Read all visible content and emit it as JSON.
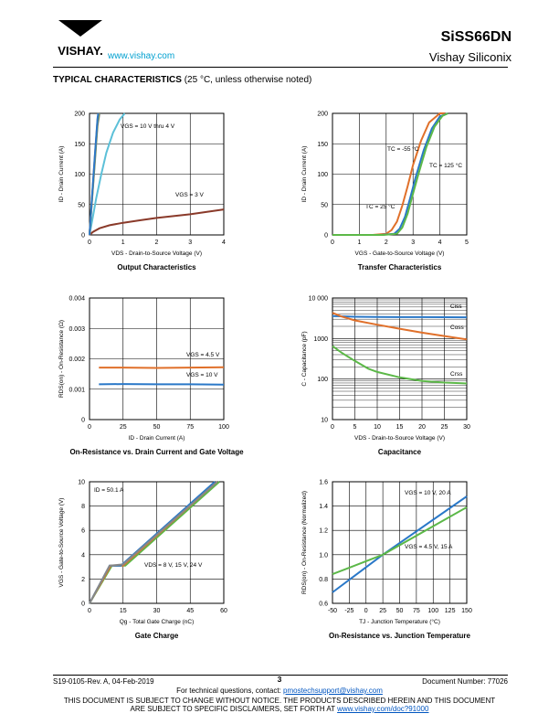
{
  "header": {
    "brand": "VISHAY.",
    "url": "www.vishay.com",
    "part_number": "SiSS66DN",
    "company": "Vishay Siliconix"
  },
  "section": {
    "title": "TYPICAL CHARACTERISTICS",
    "note": "(25 °C, unless otherwise noted)"
  },
  "colors": {
    "blue": "#2a78c8",
    "green": "#5cb848",
    "orange": "#e0702a",
    "teal": "#5cc0d8",
    "brown": "#8a3a2a",
    "gray": "#888888"
  },
  "chart_data": [
    {
      "type": "line",
      "caption": "Output Characteristics",
      "xlabel": "VDS - Drain-to-Source Voltage (V)",
      "ylabel": "ID - Drain Current (A)",
      "xlim": [
        0,
        4
      ],
      "ylim": [
        0,
        200
      ],
      "xticks": [
        "0",
        "1",
        "2",
        "3",
        "4"
      ],
      "yticks": [
        "0",
        "50",
        "100",
        "150",
        "200"
      ],
      "annotations": [
        {
          "text": "VGS = 10 V thru 4 V"
        },
        {
          "text": "VGS = 3 V"
        }
      ],
      "series": [
        {
          "color": "#8a3a2a",
          "x": [
            0,
            0.1,
            0.3,
            0.6,
            1,
            1.5,
            2,
            2.5,
            3,
            3.5,
            4
          ],
          "y": [
            0,
            5,
            11,
            16,
            20,
            24,
            28,
            31,
            34,
            38,
            42
          ]
        },
        {
          "color": "#5cc0d8",
          "x": [
            0,
            0.1,
            0.2,
            0.35,
            0.5,
            0.7,
            0.9,
            1.05
          ],
          "y": [
            0,
            30,
            60,
            100,
            135,
            168,
            190,
            200
          ]
        },
        {
          "color": "#888888",
          "x": [
            0,
            0.08,
            0.16,
            0.24,
            0.3
          ],
          "y": [
            0,
            60,
            120,
            180,
            200
          ]
        },
        {
          "color": "#5cb848",
          "x": [
            0,
            0.08,
            0.16,
            0.24,
            0.28
          ],
          "y": [
            0,
            62,
            125,
            185,
            200
          ]
        },
        {
          "color": "#e0702a",
          "x": [
            0,
            0.08,
            0.16,
            0.24,
            0.27
          ],
          "y": [
            0,
            65,
            130,
            190,
            200
          ]
        },
        {
          "color": "#2a78c8",
          "x": [
            0,
            0.08,
            0.16,
            0.24,
            0.26
          ],
          "y": [
            0,
            66,
            132,
            192,
            200
          ]
        }
      ]
    },
    {
      "type": "line",
      "caption": "Transfer Characteristics",
      "xlabel": "VGS - Gate-to-Source Voltage (V)",
      "ylabel": "ID - Drain Current (A)",
      "xlim": [
        0,
        5
      ],
      "ylim": [
        0,
        200
      ],
      "xticks": [
        "0",
        "1",
        "2",
        "3",
        "4",
        "5"
      ],
      "yticks": [
        "0",
        "50",
        "100",
        "150",
        "200"
      ],
      "annotations": [
        {
          "text": "TC = -55 °C"
        },
        {
          "text": "TC = 125 °C"
        },
        {
          "text": "TC = 25 °C"
        }
      ],
      "series": [
        {
          "name": "TC = -55 °C",
          "color": "#e0702a",
          "x": [
            0,
            1.5,
            2.0,
            2.2,
            2.4,
            2.6,
            2.8,
            3.0,
            3.3,
            3.6,
            4.0,
            4.2
          ],
          "y": [
            0,
            0,
            2,
            8,
            22,
            48,
            80,
            115,
            155,
            185,
            200,
            200
          ]
        },
        {
          "name": "TC = 125 °C",
          "color": "#2a78c8",
          "x": [
            0,
            1.8,
            2.3,
            2.5,
            2.7,
            2.9,
            3.1,
            3.4,
            3.7,
            4.0,
            4.3
          ],
          "y": [
            0,
            0,
            2,
            10,
            30,
            62,
            95,
            140,
            175,
            195,
            200
          ]
        },
        {
          "name": "TC = 25 °C",
          "color": "#5cb848",
          "x": [
            0,
            1.9,
            2.4,
            2.6,
            2.8,
            3.0,
            3.2,
            3.5,
            3.8,
            4.1,
            4.3
          ],
          "y": [
            0,
            0,
            2,
            12,
            35,
            68,
            100,
            145,
            178,
            196,
            200
          ]
        }
      ]
    },
    {
      "type": "line",
      "caption": "On-Resistance vs. Drain Current and Gate Voltage",
      "xlabel": "ID - Drain Current (A)",
      "ylabel": "RDS(on) - On-Resistance (Ω)",
      "xlim": [
        0,
        100
      ],
      "ylim": [
        0,
        0.004
      ],
      "xticks": [
        "0",
        "25",
        "50",
        "75",
        "100"
      ],
      "yticks": [
        "0",
        "0.001",
        "0.002",
        "0.003",
        "0.004"
      ],
      "annotations": [
        {
          "text": "VGS = 4.5 V"
        },
        {
          "text": "VGS = 10 V"
        }
      ],
      "series": [
        {
          "name": "VGS = 4.5 V",
          "color": "#e0702a",
          "x": [
            7,
            25,
            50,
            75,
            100
          ],
          "y": [
            0.00171,
            0.00171,
            0.0017,
            0.00171,
            0.00172
          ]
        },
        {
          "name": "VGS = 10 V",
          "color": "#2a78c8",
          "x": [
            7,
            25,
            50,
            75,
            100
          ],
          "y": [
            0.00116,
            0.00117,
            0.00116,
            0.00116,
            0.00115
          ]
        }
      ]
    },
    {
      "type": "line",
      "caption": "Capacitance",
      "xlabel": "VDS - Drain-to-Source Voltage (V)",
      "ylabel": "C - Capacitance (pF)",
      "xlim": [
        0,
        30
      ],
      "ylim": [
        10,
        10000
      ],
      "yscale": "log",
      "xticks": [
        "0",
        "5",
        "10",
        "15",
        "20",
        "25",
        "30"
      ],
      "yticks": [
        "10",
        "100",
        "1000",
        "10 000"
      ],
      "annotations": [
        {
          "text": "Ciss"
        },
        {
          "text": "Coss"
        },
        {
          "text": "Crss"
        }
      ],
      "series": [
        {
          "name": "Ciss",
          "color": "#2a78c8",
          "x": [
            0,
            5,
            10,
            15,
            20,
            25,
            30
          ],
          "y": [
            3600,
            3450,
            3400,
            3380,
            3370,
            3360,
            3350
          ]
        },
        {
          "name": "Coss",
          "color": "#e0702a",
          "x": [
            0,
            2,
            5,
            10,
            15,
            20,
            25,
            30
          ],
          "y": [
            4300,
            3500,
            2800,
            2200,
            1750,
            1400,
            1150,
            950
          ]
        },
        {
          "name": "Crss",
          "color": "#5cb848",
          "x": [
            0,
            2,
            5,
            8,
            10,
            15,
            20,
            25,
            30
          ],
          "y": [
            650,
            450,
            280,
            180,
            150,
            110,
            90,
            82,
            78
          ]
        }
      ]
    },
    {
      "type": "line",
      "caption": "Gate Charge",
      "xlabel": "Qg - Total Gate Charge (nC)",
      "ylabel": "VGS - Gate-to-Source Voltage (V)",
      "xlim": [
        0,
        60
      ],
      "ylim": [
        0,
        10
      ],
      "xticks": [
        "0",
        "15",
        "30",
        "45",
        "60"
      ],
      "yticks": [
        "0",
        "2",
        "4",
        "6",
        "8",
        "10"
      ],
      "annotations": [
        {
          "text": "ID = 50.1 A"
        },
        {
          "text": "VDS = 8 V, 15 V, 24 V"
        }
      ],
      "series": [
        {
          "color": "#5cb848",
          "x": [
            0,
            10,
            16,
            58
          ],
          "y": [
            0,
            3.1,
            3.1,
            10
          ]
        },
        {
          "color": "#e0702a",
          "x": [
            0,
            9.5,
            15,
            57
          ],
          "y": [
            0,
            3.1,
            3.1,
            10
          ]
        },
        {
          "color": "#2a78c8",
          "x": [
            0,
            9,
            14,
            56
          ],
          "y": [
            0,
            3.1,
            3.1,
            10
          ]
        },
        {
          "color": "#888888",
          "x": [
            0,
            9,
            15,
            57
          ],
          "y": [
            0,
            3.1,
            3.2,
            10
          ]
        }
      ]
    },
    {
      "type": "line",
      "caption": "On-Resistance vs. Junction Temperature",
      "xlabel": "TJ - Junction Temperature (°C)",
      "ylabel": "RDS(on) - On-Resistance (Normalized)",
      "xlim": [
        -50,
        150
      ],
      "ylim": [
        0.6,
        1.6
      ],
      "xticks": [
        "-50",
        "-25",
        "0",
        "25",
        "50",
        "75",
        "100",
        "125",
        "150"
      ],
      "yticks": [
        "0.6",
        "0.8",
        "1.0",
        "1.2",
        "1.4",
        "1.6"
      ],
      "annotations": [
        {
          "text": "VGS = 10 V, 20 A"
        },
        {
          "text": "VGS = 4.5 V, 15 A"
        }
      ],
      "series": [
        {
          "name": "VGS = 10 V, 20 A",
          "color": "#2a78c8",
          "x": [
            -50,
            25,
            150
          ],
          "y": [
            0.69,
            1.0,
            1.48
          ]
        },
        {
          "name": "VGS = 4.5 V, 15 A",
          "color": "#5cb848",
          "x": [
            -50,
            25,
            150
          ],
          "y": [
            0.84,
            1.0,
            1.39
          ]
        }
      ]
    }
  ],
  "footer": {
    "doc_revision": "S19-0105-Rev. A, 04-Feb-2019",
    "page": "3",
    "doc_number": "Document Number: 77026",
    "contact_prefix": "For technical questions, contact: ",
    "contact_email": "pmostechsupport@vishay.com",
    "disclaimer_line1": "THIS DOCUMENT IS SUBJECT TO CHANGE WITHOUT NOTICE. THE PRODUCTS DESCRIBED HEREIN AND THIS DOCUMENT",
    "disclaimer_line2_prefix": "ARE SUBJECT TO SPECIFIC DISCLAIMERS, SET FORTH AT ",
    "disclaimer_link": "www.vishay.com/doc?91000"
  }
}
